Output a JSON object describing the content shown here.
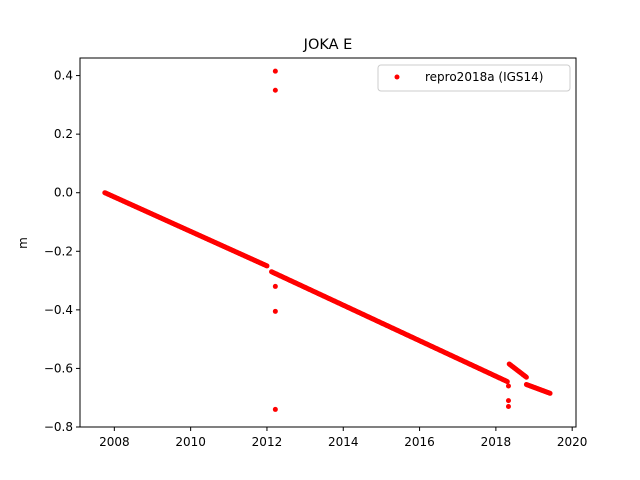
{
  "chart_data": {
    "type": "scatter",
    "title": "JOKA E",
    "xlabel": "",
    "ylabel": "m",
    "xlim": [
      2007.1,
      2020.1
    ],
    "ylim": [
      -0.8,
      0.46
    ],
    "xticks": [
      2008,
      2010,
      2012,
      2014,
      2016,
      2018,
      2020
    ],
    "yticks": [
      -0.8,
      -0.6,
      -0.4,
      -0.2,
      0.0,
      0.2,
      0.4
    ],
    "xtick_labels": [
      "2008",
      "2010",
      "2012",
      "2014",
      "2016",
      "2018",
      "2020"
    ],
    "ytick_labels": [
      "−0.8",
      "−0.6",
      "−0.4",
      "−0.2",
      "0.0",
      "0.2",
      "0.4"
    ],
    "grid": false,
    "legend_position": "top-right",
    "series": [
      {
        "name": "repro2018a (IGS14)",
        "color": "#ff0000",
        "marker": "dot",
        "segments": [
          {
            "x_start": 2007.75,
            "x_end": 2012.0,
            "y_start": 0.0,
            "y_end": -0.25
          },
          {
            "x_start": 2012.12,
            "x_end": 2018.3,
            "y_start": -0.27,
            "y_end": -0.645
          },
          {
            "x_start": 2018.35,
            "x_end": 2018.8,
            "y_start": -0.585,
            "y_end": -0.63
          },
          {
            "x_start": 2018.8,
            "x_end": 2019.42,
            "y_start": -0.655,
            "y_end": -0.685
          }
        ],
        "outliers": [
          {
            "x": 2012.22,
            "y": 0.415
          },
          {
            "x": 2012.22,
            "y": 0.35
          },
          {
            "x": 2012.22,
            "y": -0.32
          },
          {
            "x": 2012.22,
            "y": -0.405
          },
          {
            "x": 2012.22,
            "y": -0.74
          },
          {
            "x": 2018.33,
            "y": -0.66
          },
          {
            "x": 2018.33,
            "y": -0.71
          },
          {
            "x": 2018.33,
            "y": -0.73
          }
        ]
      }
    ]
  }
}
